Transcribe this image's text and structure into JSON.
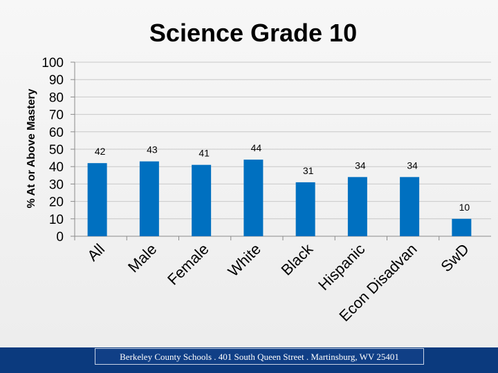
{
  "chart_data": {
    "type": "bar",
    "title": "Science Grade 10",
    "ylabel": "% At or Above Mastery",
    "xlabel": "",
    "ylim": [
      0,
      100
    ],
    "yticks": [
      0,
      10,
      20,
      30,
      40,
      50,
      60,
      70,
      80,
      90,
      100
    ],
    "categories": [
      "All",
      "Male",
      "Female",
      "White",
      "Black",
      "Hispanic",
      "Econ Disadvan",
      "SwD"
    ],
    "values": [
      42,
      43,
      41,
      44,
      31,
      34,
      34,
      10
    ],
    "data_labels": [
      "42",
      "43",
      "41",
      "44",
      "31",
      "34",
      "34",
      "10"
    ],
    "bar_color": "#0070c0",
    "grid": true,
    "legend": "none"
  },
  "footer": {
    "text": "Berkeley County Schools . 401 South Queen Street . Martinsburg, WV  25401"
  }
}
